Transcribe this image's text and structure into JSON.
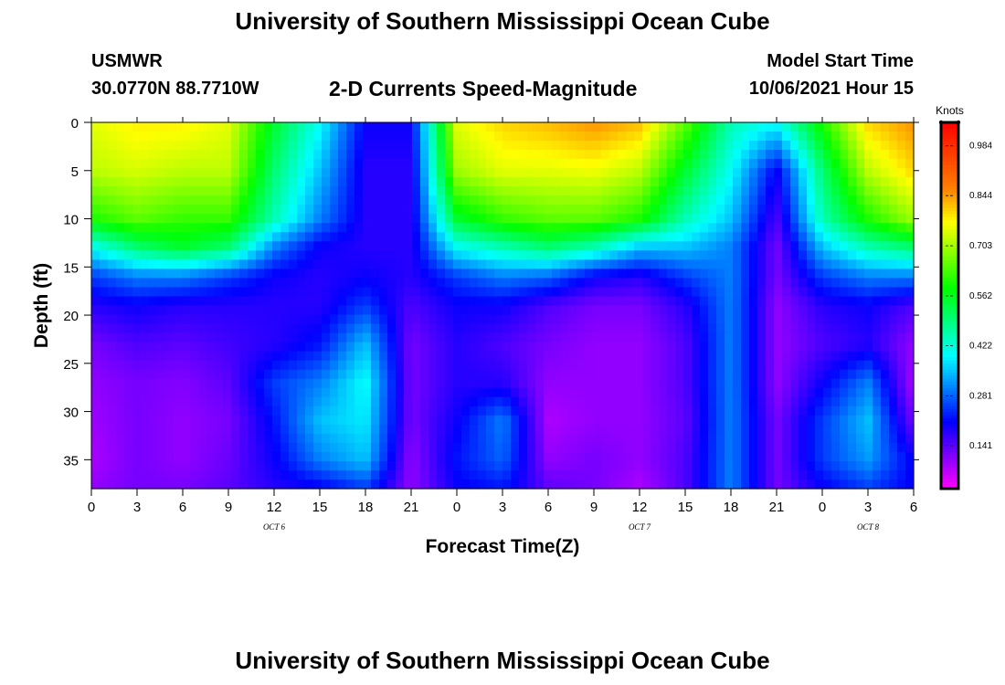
{
  "header": {
    "title": "University of Southern Mississippi Ocean Cube",
    "station": "USMWR",
    "coords": "30.0770N  88.7710W",
    "subtitle": "2-D Currents Speed-Magnitude",
    "model_start_label": "Model Start Time",
    "model_start_value": "10/06/2021 Hour 15"
  },
  "footer": {
    "title": "University of Southern Mississippi Ocean Cube"
  },
  "chart_data": {
    "type": "heatmap",
    "title": "2-D Currents Speed-Magnitude",
    "xlabel": "Forecast Time(Z)",
    "ylabel": "Depth (ft)",
    "x_tick_labels": [
      "0",
      "3",
      "6",
      "9",
      "12",
      "15",
      "18",
      "21",
      "0",
      "3",
      "6",
      "9",
      "12",
      "15",
      "18",
      "21",
      "0",
      "3",
      "6"
    ],
    "day_labels": [
      {
        "label": "OCT 6",
        "hours_from_start": 12
      },
      {
        "label": "OCT 7",
        "hours_from_start": 36
      },
      {
        "label": "OCT 8",
        "hours_from_start": 51
      }
    ],
    "xlim_hours": [
      0,
      54
    ],
    "ylim_ft": [
      0,
      38
    ],
    "y_ticks": [
      0,
      5,
      10,
      15,
      20,
      25,
      30,
      35
    ],
    "colorbar": {
      "label": "Knots",
      "range": [
        0.02,
        1.05
      ],
      "tick_values": [
        0.141,
        0.281,
        0.422,
        0.562,
        0.703,
        0.844,
        0.984
      ],
      "tick_labels": [
        "0.141",
        "0.281",
        "0.422",
        "0.562",
        "0.703",
        "0.844",
        "0.984"
      ],
      "colors": [
        "#ff00ff",
        "#7f00ff",
        "#0000ff",
        "#0080ff",
        "#00ffff",
        "#00ff80",
        "#00ff00",
        "#80ff00",
        "#ffff00",
        "#ff8000",
        "#ff4000",
        "#ff0000"
      ]
    },
    "depth_levels_ft": [
      0,
      5,
      10,
      13,
      16,
      19,
      23,
      27,
      31,
      35,
      38
    ],
    "time_hours": [
      0,
      3,
      6,
      9,
      12,
      15,
      18,
      21,
      24,
      27,
      30,
      33,
      36,
      39,
      42,
      45,
      48,
      51,
      54
    ],
    "speed_knots": [
      [
        0.75,
        0.78,
        0.78,
        0.75,
        0.55,
        0.4,
        0.2,
        0.2,
        0.75,
        0.8,
        0.82,
        0.85,
        0.82,
        0.65,
        0.45,
        0.4,
        0.6,
        0.8,
        0.85
      ],
      [
        0.72,
        0.74,
        0.72,
        0.72,
        0.5,
        0.35,
        0.18,
        0.18,
        0.7,
        0.75,
        0.75,
        0.76,
        0.72,
        0.55,
        0.4,
        0.2,
        0.5,
        0.72,
        0.8
      ],
      [
        0.6,
        0.65,
        0.62,
        0.62,
        0.45,
        0.3,
        0.18,
        0.18,
        0.55,
        0.62,
        0.65,
        0.65,
        0.6,
        0.45,
        0.35,
        0.15,
        0.45,
        0.6,
        0.7
      ],
      [
        0.4,
        0.5,
        0.55,
        0.5,
        0.3,
        0.2,
        0.18,
        0.18,
        0.4,
        0.45,
        0.5,
        0.45,
        0.35,
        0.35,
        0.3,
        0.12,
        0.35,
        0.45,
        0.5
      ],
      [
        0.25,
        0.3,
        0.3,
        0.25,
        0.2,
        0.18,
        0.2,
        0.18,
        0.25,
        0.3,
        0.28,
        0.2,
        0.18,
        0.25,
        0.3,
        0.12,
        0.25,
        0.3,
        0.3
      ],
      [
        0.18,
        0.2,
        0.18,
        0.18,
        0.18,
        0.18,
        0.25,
        0.15,
        0.2,
        0.2,
        0.15,
        0.12,
        0.12,
        0.18,
        0.3,
        0.1,
        0.18,
        0.2,
        0.15
      ],
      [
        0.12,
        0.15,
        0.14,
        0.16,
        0.18,
        0.22,
        0.35,
        0.12,
        0.18,
        0.15,
        0.12,
        0.1,
        0.1,
        0.15,
        0.3,
        0.1,
        0.15,
        0.18,
        0.1
      ],
      [
        0.1,
        0.12,
        0.11,
        0.14,
        0.25,
        0.3,
        0.4,
        0.12,
        0.18,
        0.18,
        0.1,
        0.1,
        0.1,
        0.15,
        0.3,
        0.1,
        0.2,
        0.3,
        0.08
      ],
      [
        0.09,
        0.12,
        0.1,
        0.12,
        0.22,
        0.35,
        0.38,
        0.12,
        0.2,
        0.3,
        0.08,
        0.1,
        0.1,
        0.14,
        0.3,
        0.12,
        0.25,
        0.35,
        0.12
      ],
      [
        0.08,
        0.12,
        0.1,
        0.13,
        0.2,
        0.3,
        0.35,
        0.1,
        0.22,
        0.28,
        0.1,
        0.12,
        0.1,
        0.15,
        0.3,
        0.12,
        0.25,
        0.32,
        0.2
      ],
      [
        0.1,
        0.12,
        0.12,
        0.14,
        0.18,
        0.2,
        0.25,
        0.1,
        0.2,
        0.22,
        0.14,
        0.12,
        0.08,
        0.15,
        0.3,
        0.12,
        0.2,
        0.25,
        0.2
      ]
    ]
  }
}
